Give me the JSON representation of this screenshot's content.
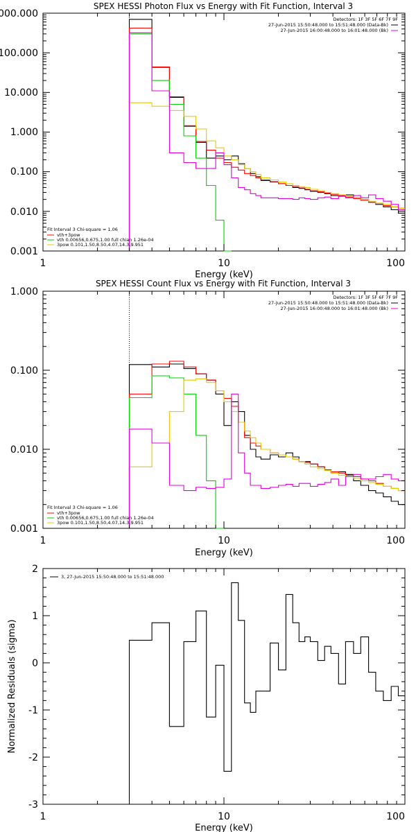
{
  "chart_data": [
    {
      "type": "line",
      "title": "SPEX HESSI Photon Flux vs Energy with Fit Function, Interval 3",
      "xlabel": "Energy (keV)",
      "ylabel": "",
      "xscale": "log",
      "yscale": "log",
      "xlim": [
        1,
        100
      ],
      "ylim": [
        0.001,
        1000
      ],
      "grid": false,
      "x_ticks": [
        "1",
        "10",
        "100"
      ],
      "y_ticks": [
        "0.001",
        "0.010",
        "0.100",
        "1.000",
        "10.000",
        "100.000",
        "1000.000"
      ],
      "bin_edges": [
        3,
        4,
        5,
        6,
        7,
        8,
        9,
        10,
        11,
        12,
        13,
        14,
        15,
        16,
        18,
        20,
        22,
        24,
        26,
        28,
        30,
        33,
        36,
        39,
        43,
        47,
        52,
        57,
        63,
        69,
        76,
        84,
        92,
        100
      ],
      "vline_x": 3.0,
      "legend_top_right": [
        "Detectors: 1F 3F 5F 6F 7F 9F",
        "27-Jun-2015 15:50:48.000 to 15:51:48.000 (Data-Bk)",
        "27-Jun-2015 16:00:48.000 to 16:01:48.000 (Bk)"
      ],
      "legend_bottom_left": [
        "Fit Interval 3   Chi-square = 1.06",
        "vth+3pow",
        "vth 0.00656,0.675,1.00  full chian 1.26e-04",
        "3pow 0.101,1.50,8.50,4.07,14.3,9.951"
      ],
      "series": [
        {
          "color": "#000000",
          "values": [
            700,
            43,
            7.5,
            1.4,
            0.55,
            0.22,
            0.25,
            0.2,
            0.25,
            0.16,
            0.12,
            0.09,
            0.075,
            0.06,
            0.055,
            0.05,
            0.045,
            0.04,
            0.038,
            0.035,
            0.032,
            0.03,
            0.028,
            0.025,
            0.024,
            0.026,
            0.022,
            0.02,
            0.017,
            0.015,
            0.013,
            0.011,
            0.009
          ]
        },
        {
          "color": "#ff0000",
          "values": [
            420,
            44,
            7.8,
            1.45,
            0.58,
            0.35,
            0.22,
            0.17,
            0.13,
            0.11,
            0.09,
            0.08,
            0.07,
            0.062,
            0.056,
            0.05,
            0.045,
            0.042,
            0.039,
            0.036,
            0.033,
            0.031,
            0.029,
            0.027,
            0.025,
            0.023,
            0.021,
            0.019,
            0.017,
            0.016,
            0.014,
            0.013,
            0.012
          ]
        },
        {
          "color": "#00d000",
          "values": [
            300,
            20,
            5,
            0.8,
            0.22,
            0.045,
            0.006,
            0.001
          ]
        },
        {
          "color": "#e8c800",
          "values": [
            5.5,
            4.5,
            3.5,
            2.5,
            1.2,
            0.6,
            0.4,
            0.25,
            0.2,
            0.15,
            0.12,
            0.1,
            0.085,
            0.07,
            0.062,
            0.055,
            0.05,
            0.045,
            0.042,
            0.04,
            0.036,
            0.033,
            0.03,
            0.028,
            0.026,
            0.024,
            0.022,
            0.02,
            0.018,
            0.016,
            0.015,
            0.013,
            0.012
          ]
        },
        {
          "color": "#e000e0",
          "values": [
            320,
            11,
            0.3,
            0.17,
            0.12,
            0.12,
            0.3,
            0.15,
            0.07,
            0.04,
            0.035,
            0.028,
            0.025,
            0.022,
            0.022,
            0.021,
            0.021,
            0.02,
            0.022,
            0.021,
            0.02,
            0.022,
            0.023,
            0.021,
            0.024,
            0.022,
            0.025,
            0.022,
            0.026,
            0.021,
            0.018,
            0.015,
            0.011
          ]
        }
      ]
    },
    {
      "type": "line",
      "title": "SPEX HESSI Count Flux vs Energy with Fit Function, Interval 3",
      "xlabel": "Energy (keV)",
      "ylabel": "",
      "xscale": "log",
      "yscale": "log",
      "xlim": [
        1,
        100
      ],
      "ylim": [
        0.001,
        1
      ],
      "grid": false,
      "x_ticks": [
        "1",
        "10",
        "100"
      ],
      "y_ticks": [
        "0.001",
        "0.010",
        "0.100",
        "1.000"
      ],
      "bin_edges": [
        3,
        4,
        5,
        6,
        7,
        8,
        9,
        10,
        11,
        12,
        13,
        14,
        15,
        16,
        18,
        20,
        22,
        24,
        26,
        28,
        30,
        33,
        36,
        39,
        43,
        47,
        52,
        57,
        63,
        69,
        76,
        84,
        92,
        100
      ],
      "vline_x": 3.0,
      "legend_top_right": [
        "Detectors: 1F 3F 5F 6F 7F 9F",
        "27-Jun-2015 15:50:48.000 to 15:51:48.000 (Data-Bk)",
        "27-Jun-2015 16:00:48.000 to 16:01:48.000 (Bk)"
      ],
      "legend_bottom_left": [
        "Fit Interval 3   Chi-square = 1.06",
        "vth+3pow",
        "vth 0.00656,0.675,1.00  full chian 1.26e-04",
        "3pow 0.101,1.50,8.50,4.07,14.3,9.951"
      ],
      "series": [
        {
          "color": "#000000",
          "values": [
            0.118,
            0.11,
            0.12,
            0.105,
            0.09,
            0.075,
            0.05,
            0.02,
            0.04,
            0.03,
            0.015,
            0.01,
            0.008,
            0.0075,
            0.0085,
            0.008,
            0.009,
            0.008,
            0.007,
            0.007,
            0.0065,
            0.006,
            0.0055,
            0.005,
            0.0052,
            0.0048,
            0.004,
            0.0035,
            0.003,
            0.0028,
            0.0025,
            0.0022,
            0.002
          ]
        },
        {
          "color": "#ff0000",
          "values": [
            0.05,
            0.12,
            0.13,
            0.11,
            0.09,
            0.075,
            0.055,
            0.044,
            0.035,
            0.022,
            0.014,
            0.012,
            0.011,
            0.01,
            0.009,
            0.0085,
            0.008,
            0.0075,
            0.007,
            0.0068,
            0.0065,
            0.006,
            0.0055,
            0.0052,
            0.005,
            0.0047,
            0.0045,
            0.0042,
            0.004,
            0.0037,
            0.0034,
            0.0032,
            0.003
          ]
        },
        {
          "color": "#00d000",
          "values": [
            0.045,
            0.085,
            0.08,
            0.05,
            0.015,
            0.004,
            0.001
          ]
        },
        {
          "color": "#e8c800",
          "values": [
            0.006,
            0.012,
            0.03,
            0.075,
            0.078,
            0.07,
            0.055,
            0.04,
            0.03,
            0.022,
            0.017,
            0.014,
            0.012,
            0.01,
            0.009,
            0.0085,
            0.008,
            0.0075,
            0.007,
            0.0065,
            0.006,
            0.0057,
            0.0054,
            0.005,
            0.0047,
            0.0045,
            0.0043,
            0.004,
            0.0038,
            0.0036,
            0.0034,
            0.0032,
            0.003
          ]
        },
        {
          "color": "#e000e0",
          "values": [
            0.018,
            0.012,
            0.0035,
            0.003,
            0.0033,
            0.0032,
            0.0033,
            0.0042,
            0.05,
            0.009,
            0.005,
            0.0035,
            0.0035,
            0.0032,
            0.0033,
            0.0035,
            0.0036,
            0.0034,
            0.0037,
            0.0037,
            0.0034,
            0.0036,
            0.0038,
            0.0042,
            0.0035,
            0.0045,
            0.0048,
            0.0042,
            0.0042,
            0.0045,
            0.0048,
            0.0042,
            0.004
          ]
        }
      ]
    },
    {
      "type": "line",
      "title": "",
      "xlabel": "Energy (keV)",
      "ylabel": "Normalized Residuals (sigma)",
      "xscale": "log",
      "yscale": "linear",
      "xlim": [
        1,
        100
      ],
      "ylim": [
        -3,
        2
      ],
      "grid": false,
      "x_ticks": [
        "1",
        "10",
        "100"
      ],
      "y_ticks": [
        "-3",
        "-2",
        "-1",
        "0",
        "1",
        "2"
      ],
      "bin_edges": [
        3,
        4,
        5,
        6,
        7,
        8,
        9,
        10,
        11,
        12,
        13,
        14,
        15,
        16,
        18,
        20,
        22,
        24,
        26,
        28,
        30,
        33,
        36,
        39,
        43,
        47,
        52,
        57,
        63,
        69,
        76,
        84,
        92,
        100
      ],
      "legend_top_left": [
        "3, 27-Jun-2015 15:50:48.000 to 15:51:48.000"
      ],
      "series": [
        {
          "color": "#000000",
          "values": [
            0.48,
            0.85,
            -1.35,
            0.45,
            1.1,
            -1.15,
            -0.05,
            -2.3,
            1.7,
            0.9,
            -0.85,
            -1.05,
            -0.6,
            -0.6,
            0.42,
            -0.15,
            1.45,
            0.85,
            0.45,
            0.55,
            0.45,
            0.05,
            0.35,
            0.2,
            -0.45,
            0.45,
            0.2,
            0.55,
            -0.2,
            -0.6,
            -0.8,
            -0.5,
            -0.7
          ]
        }
      ]
    }
  ]
}
